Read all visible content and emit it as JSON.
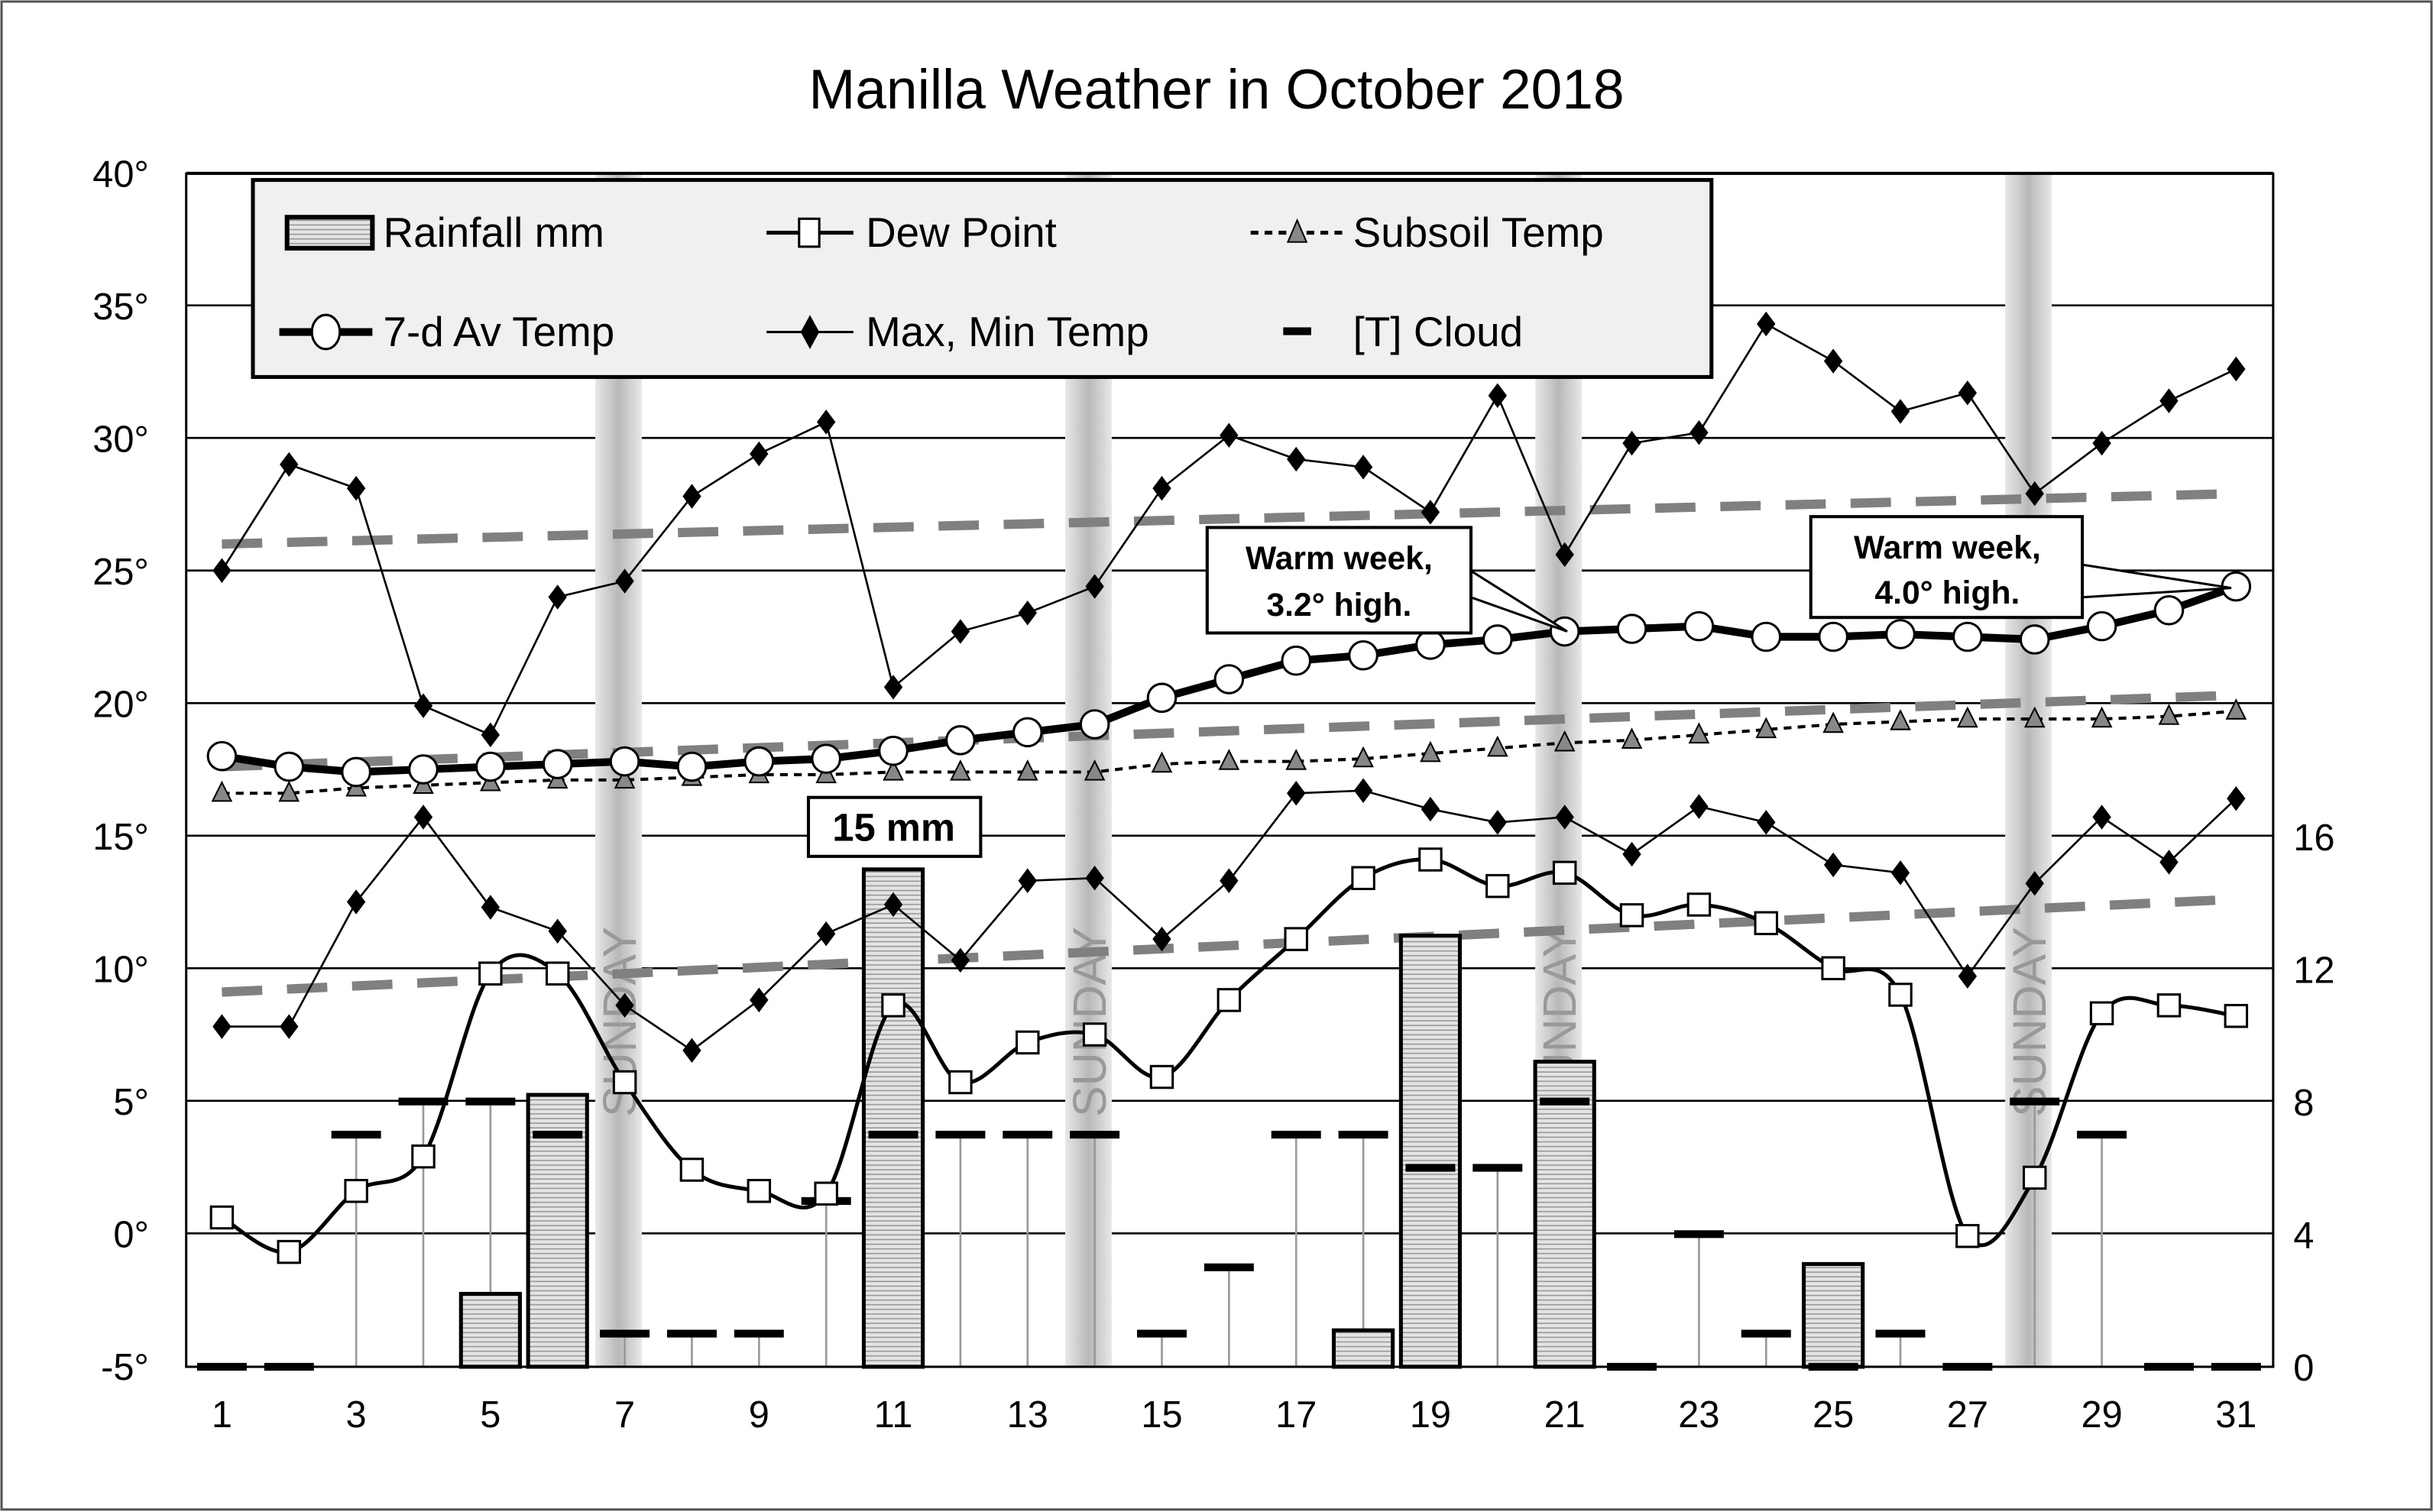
{
  "chart_data": {
    "type": "line",
    "title": "Manilla Weather in October 2018",
    "xlabel": "",
    "ylabel": "",
    "x": [
      1,
      2,
      3,
      4,
      5,
      6,
      7,
      8,
      9,
      10,
      11,
      12,
      13,
      14,
      15,
      16,
      17,
      18,
      19,
      20,
      21,
      22,
      23,
      24,
      25,
      26,
      27,
      28,
      29,
      30,
      31
    ],
    "x_ticks": [
      "1",
      "3",
      "5",
      "7",
      "9",
      "11",
      "13",
      "15",
      "17",
      "19",
      "21",
      "23",
      "25",
      "27",
      "29",
      "31"
    ],
    "ylim": [
      -5,
      40
    ],
    "y_ticks": [
      "40°",
      "35°",
      "30°",
      "25°",
      "20°",
      "15°",
      "10°",
      "5°",
      "0°",
      "-5°"
    ],
    "y2lim": [
      0,
      36
    ],
    "y2_ticks": [
      "16",
      "12",
      "8",
      "4",
      "0"
    ],
    "grid": true,
    "legend_position": "top-left",
    "legend": {
      "rain": "Rainfall mm",
      "dew": "Dew Point",
      "subsoil": "Subsoil Temp",
      "avg7": "7-d Av Temp",
      "maxmin": "Max, Min Temp",
      "cloud": "[T] Cloud"
    },
    "series": [
      {
        "name": "Max Temp",
        "values": [
          25.0,
          29.0,
          28.1,
          19.9,
          18.8,
          24.0,
          24.6,
          27.8,
          29.4,
          30.6,
          20.6,
          22.7,
          23.4,
          24.4,
          28.1,
          30.1,
          29.2,
          28.9,
          27.2,
          31.6,
          25.6,
          29.8,
          30.2,
          34.3,
          32.9,
          31.0,
          31.7,
          27.9,
          29.8,
          31.4,
          32.6
        ]
      },
      {
        "name": "Min Temp",
        "values": [
          7.8,
          7.8,
          12.5,
          15.7,
          12.3,
          11.4,
          8.6,
          6.9,
          8.8,
          11.3,
          12.4,
          10.3,
          13.3,
          13.4,
          11.1,
          13.3,
          16.6,
          16.7,
          16.0,
          15.5,
          15.7,
          14.3,
          16.1,
          15.5,
          13.9,
          13.6,
          9.7,
          13.2,
          15.7,
          14.0,
          16.4
        ]
      },
      {
        "name": "Dew Point",
        "values": [
          0.6,
          -0.7,
          1.6,
          2.9,
          9.8,
          9.8,
          5.7,
          2.4,
          1.6,
          1.5,
          8.6,
          5.7,
          7.2,
          7.5,
          5.9,
          8.8,
          11.1,
          13.4,
          14.1,
          13.1,
          13.6,
          12.0,
          12.4,
          11.7,
          10.0,
          9.0,
          -0.1,
          2.1,
          8.3,
          8.6,
          8.2
        ]
      },
      {
        "name": "7-d Av Temp",
        "values": [
          18.0,
          17.6,
          17.4,
          17.5,
          17.6,
          17.7,
          17.8,
          17.6,
          17.8,
          17.9,
          18.2,
          18.6,
          18.9,
          19.2,
          20.2,
          20.9,
          21.6,
          21.8,
          22.2,
          22.4,
          22.7,
          22.8,
          22.9,
          22.5,
          22.5,
          22.6,
          22.5,
          22.4,
          22.9,
          23.5,
          24.4
        ]
      },
      {
        "name": "Subsoil Temp",
        "values": [
          16.6,
          16.6,
          16.8,
          16.9,
          17.0,
          17.1,
          17.1,
          17.2,
          17.3,
          17.3,
          17.4,
          17.4,
          17.4,
          17.4,
          17.7,
          17.8,
          17.8,
          17.9,
          18.1,
          18.3,
          18.5,
          18.6,
          18.8,
          19.0,
          19.2,
          19.3,
          19.4,
          19.4,
          19.4,
          19.5,
          19.7
        ]
      },
      {
        "name": "Rainfall mm",
        "axis": "right",
        "values": [
          0,
          0,
          0,
          0,
          2.2,
          8.2,
          0,
          0,
          0,
          0,
          15,
          0,
          0,
          0,
          0,
          0,
          0,
          1.1,
          13.0,
          0,
          9.2,
          0,
          0,
          0,
          3.1,
          0,
          0,
          0,
          0,
          0,
          0
        ]
      },
      {
        "name": "[T] Cloud",
        "axis": "right",
        "values": [
          0,
          0,
          7,
          8,
          8,
          7,
          1,
          1,
          1,
          5,
          7,
          7,
          7,
          7,
          1,
          3,
          7,
          7,
          6,
          6,
          8,
          0,
          4,
          1,
          0,
          1,
          0,
          8,
          7,
          0,
          0
        ]
      }
    ],
    "normals": {
      "max": [
        26.0,
        27.9
      ],
      "mean": [
        17.6,
        20.3
      ],
      "min": [
        9.1,
        12.6
      ]
    },
    "sundays": [
      7,
      14,
      21,
      28
    ],
    "sunday_label": "SUNDAY",
    "annotations": {
      "rain_peak": "15 mm",
      "warm1_l1": "Warm week,",
      "warm1_l2": "3.2° high.",
      "warm2_l1": "Warm week,",
      "warm2_l2": "4.0° high."
    },
    "colors": {
      "normal": "#808080",
      "bar_fill": "#d8d8d8",
      "legend_bg": "#f0f0f0",
      "subsoil_marker": "#888888"
    }
  }
}
